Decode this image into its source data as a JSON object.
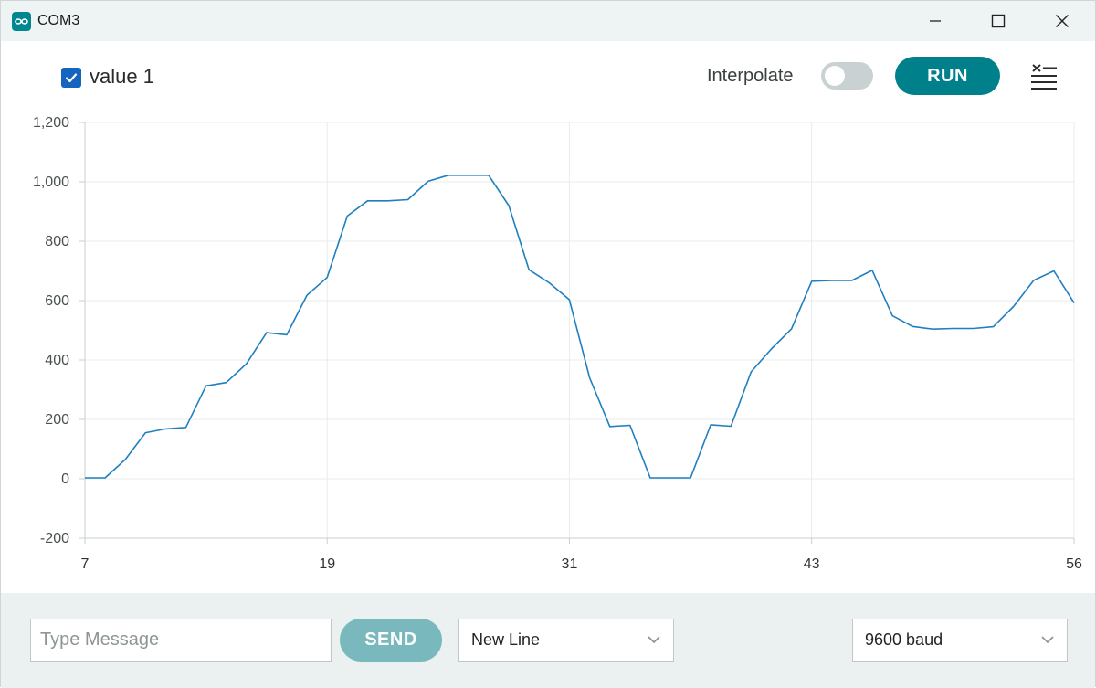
{
  "window": {
    "title": "COM3"
  },
  "toolbar": {
    "series_label": "value 1",
    "series_checked": true,
    "interpolate_label": "Interpolate",
    "interpolate_on": false,
    "run_label": "RUN",
    "accent_color": "#00808a"
  },
  "footer": {
    "message_placeholder": "Type Message",
    "message_value": "",
    "send_label": "SEND",
    "line_ending": "New Line",
    "baud": "9600 baud"
  },
  "chart_data": {
    "type": "line",
    "title": "",
    "xlabel": "",
    "ylabel": "",
    "xlim": [
      7,
      56
    ],
    "ylim": [
      -200,
      1200
    ],
    "x_ticks": [
      "7",
      "19",
      "31",
      "43",
      "56"
    ],
    "y_ticks": [
      "1,200",
      "1,000",
      "800",
      "600",
      "400",
      "200",
      "0",
      "-200"
    ],
    "grid": true,
    "series": [
      {
        "name": "value 1",
        "color": "#1f7fbf",
        "x": [
          7,
          8,
          9,
          10,
          11,
          12,
          13,
          14,
          15,
          16,
          17,
          18,
          19,
          20,
          21,
          22,
          23,
          24,
          25,
          26,
          27,
          28,
          29,
          30,
          31,
          32,
          33,
          34,
          35,
          36,
          37,
          38,
          39,
          40,
          41,
          42,
          43,
          44,
          45,
          46,
          47,
          48,
          49,
          50,
          51,
          52,
          53,
          54,
          55,
          56
        ],
        "values": [
          3,
          3,
          65,
          155,
          168,
          173,
          313,
          324,
          387,
          492,
          485,
          618,
          678,
          885,
          936,
          936,
          940,
          1002,
          1022,
          1022,
          1022,
          920,
          704,
          660,
          603,
          340,
          176,
          180,
          3,
          3,
          3,
          182,
          177,
          360,
          437,
          505,
          665,
          668,
          668,
          702,
          549,
          513,
          504,
          506,
          506,
          512,
          580,
          668,
          700,
          592
        ]
      }
    ]
  }
}
